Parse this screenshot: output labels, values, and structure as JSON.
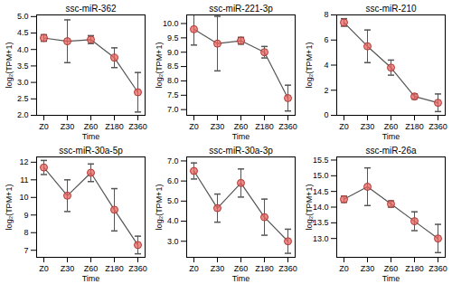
{
  "chart_data": [
    {
      "type": "line",
      "title": "ssc-miR-362",
      "xlabel": "Time",
      "ylabel": "log₂(TPM+1)",
      "x": [
        "Z0",
        "Z30",
        "Z60",
        "Z180",
        "Z360"
      ],
      "values": [
        4.35,
        4.25,
        4.3,
        3.75,
        2.7
      ],
      "errors": [
        0.1,
        0.65,
        0.12,
        0.3,
        0.6
      ],
      "color": "#e8635f",
      "marker": "circle",
      "ylim": [
        2.0,
        5.05
      ],
      "yticks": [
        {
          "value": 2,
          "label": "2.0"
        },
        {
          "value": 2.5,
          "label": "2.5"
        },
        {
          "value": 3,
          "label": "3.0"
        },
        {
          "value": 3.5,
          "label": "3.5"
        },
        {
          "value": 4,
          "label": "4.0"
        },
        {
          "value": 4.5,
          "label": "4.5"
        },
        {
          "value": 5,
          "label": "5.0"
        }
      ]
    },
    {
      "type": "line",
      "title": "ssc-miR-221-3p",
      "xlabel": "Time",
      "ylabel": "log₂(TPM+1)",
      "x": [
        "Z0",
        "Z30",
        "Z60",
        "Z180",
        "Z360"
      ],
      "values": [
        9.8,
        9.3,
        9.4,
        9.0,
        7.4
      ],
      "errors": [
        0.55,
        0.95,
        0.12,
        0.2,
        0.45
      ],
      "color": "#e8635f",
      "marker": "circle",
      "ylim": [
        6.8,
        10.3
      ],
      "yticks": [
        {
          "value": 7,
          "label": "7.0"
        },
        {
          "value": 7.5,
          "label": "7.5"
        },
        {
          "value": 8,
          "label": "8.0"
        },
        {
          "value": 8.5,
          "label": "8.5"
        },
        {
          "value": 9,
          "label": "9.0"
        },
        {
          "value": 9.5,
          "label": "9.5"
        },
        {
          "value": 10,
          "label": "10.0"
        }
      ]
    },
    {
      "type": "line",
      "title": "ssc-miR-210",
      "xlabel": "Time",
      "ylabel": "log₂(TPM+1)",
      "x": [
        "Z0",
        "Z30",
        "Z60",
        "Z180",
        "Z360"
      ],
      "values": [
        7.4,
        5.5,
        3.8,
        1.5,
        1.0
      ],
      "errors": [
        0.3,
        1.3,
        0.6,
        0.2,
        0.7
      ],
      "color": "#e8635f",
      "marker": "circle",
      "ylim": [
        0,
        8
      ],
      "yticks": [
        0,
        2,
        4,
        6,
        8
      ]
    },
    {
      "type": "line",
      "title": "ssc-miR-30a-5p",
      "xlabel": "Time",
      "ylabel": "log₂(TPM+1)",
      "x": [
        "Z0",
        "Z30",
        "Z60",
        "Z180",
        "Z360"
      ],
      "values": [
        11.7,
        10.1,
        11.4,
        9.3,
        7.3
      ],
      "errors": [
        0.4,
        0.9,
        0.5,
        1.2,
        0.5
      ],
      "color": "#e8635f",
      "marker": "circle",
      "ylim": [
        6.6,
        12.3
      ],
      "yticks": [
        7,
        8,
        9,
        10,
        11,
        12
      ]
    },
    {
      "type": "line",
      "title": "ssc-miR-30a-3p",
      "xlabel": "Time",
      "ylabel": "log₂(TPM+1)",
      "x": [
        "Z0",
        "Z30",
        "Z60",
        "Z180",
        "Z360"
      ],
      "values": [
        6.5,
        4.65,
        5.9,
        4.2,
        3.0
      ],
      "errors": [
        0.4,
        0.7,
        0.7,
        0.9,
        0.6
      ],
      "color": "#e8635f",
      "marker": "circle",
      "ylim": [
        2.2,
        7.2
      ],
      "yticks": [
        {
          "value": 3,
          "label": "3.0"
        },
        {
          "value": 4,
          "label": "4.0"
        },
        {
          "value": 5,
          "label": "5.0"
        },
        {
          "value": 6,
          "label": "6.0"
        },
        {
          "value": 7,
          "label": "7.0"
        }
      ]
    },
    {
      "type": "line",
      "title": "ssc-miR-26a",
      "xlabel": "Time",
      "ylabel": "log₂(TPM+1)",
      "x": [
        "Z0",
        "Z30",
        "Z60",
        "Z180",
        "Z360"
      ],
      "values": [
        14.25,
        14.65,
        14.1,
        13.55,
        13.0
      ],
      "errors": [
        0.1,
        0.6,
        0.1,
        0.3,
        0.45
      ],
      "color": "#e8635f",
      "marker": "circle",
      "ylim": [
        12.4,
        15.6
      ],
      "yticks": [
        {
          "value": 13,
          "label": "13.0"
        },
        {
          "value": 13.5,
          "label": "13.5"
        },
        {
          "value": 14,
          "label": "14.0"
        },
        {
          "value": 14.5,
          "label": "14.5"
        },
        {
          "value": 15,
          "label": "15.0"
        },
        {
          "value": 15.5,
          "label": "15.5"
        }
      ]
    }
  ]
}
